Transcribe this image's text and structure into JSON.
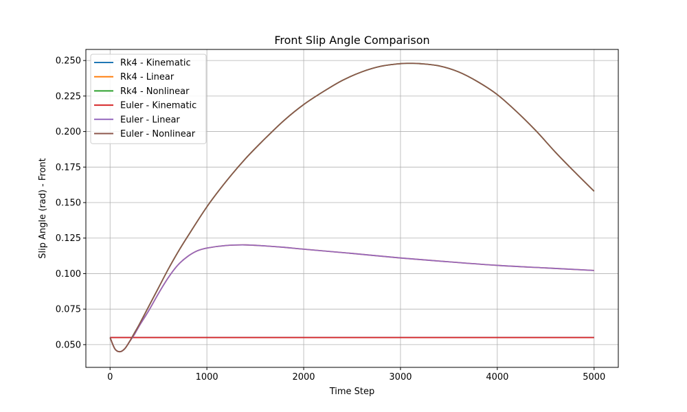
{
  "chart_data": {
    "type": "line",
    "title": "Front Slip Angle Comparison",
    "xlabel": "Time Step",
    "ylabel": "Slip Angle (rad) - Front",
    "xlim": [
      -250,
      5250
    ],
    "ylim": [
      0.034,
      0.2578
    ],
    "x_ticks": [
      0,
      1000,
      2000,
      3000,
      4000,
      5000
    ],
    "y_ticks": [
      0.05,
      0.075,
      0.1,
      0.125,
      0.15,
      0.175,
      0.2,
      0.225,
      0.25
    ],
    "y_tick_labels": [
      "0.050",
      "0.075",
      "0.100",
      "0.125",
      "0.150",
      "0.175",
      "0.200",
      "0.225",
      "0.250"
    ],
    "grid": true,
    "legend_position": "top-left",
    "series": [
      {
        "name": "Rk4 - Kinematic",
        "color": "#1f77b4",
        "x": [
          0,
          500,
          1000,
          1500,
          2000,
          2500,
          3000,
          3500,
          4000,
          4500,
          5000
        ],
        "y": [
          0.055,
          0.055,
          0.055,
          0.055,
          0.055,
          0.055,
          0.055,
          0.055,
          0.055,
          0.055,
          0.055
        ]
      },
      {
        "name": "Rk4 - Linear",
        "color": "#ff7f0e",
        "x": [
          0,
          50,
          100,
          150,
          200,
          250,
          300,
          400,
          500,
          600,
          700,
          800,
          900,
          1000,
          1200,
          1400,
          1600,
          1800,
          2000,
          2500,
          3000,
          3500,
          4000,
          4500,
          5000
        ],
        "y": [
          0.055,
          0.047,
          0.045,
          0.047,
          0.052,
          0.057,
          0.063,
          0.074,
          0.086,
          0.097,
          0.106,
          0.112,
          0.116,
          0.118,
          0.1198,
          0.1202,
          0.1195,
          0.1185,
          0.1172,
          0.1142,
          0.111,
          0.1083,
          0.1058,
          0.104,
          0.1022
        ]
      },
      {
        "name": "Rk4 - Nonlinear",
        "color": "#2ca02c",
        "x": [
          0,
          50,
          100,
          150,
          200,
          250,
          300,
          400,
          500,
          600,
          700,
          800,
          1000,
          1200,
          1400,
          1600,
          1800,
          2000,
          2200,
          2400,
          2600,
          2800,
          3000,
          3100,
          3200,
          3400,
          3600,
          3800,
          4000,
          4200,
          4400,
          4600,
          4800,
          5000
        ],
        "y": [
          0.055,
          0.047,
          0.045,
          0.047,
          0.052,
          0.058,
          0.064,
          0.077,
          0.09,
          0.103,
          0.115,
          0.126,
          0.147,
          0.165,
          0.181,
          0.195,
          0.208,
          0.219,
          0.228,
          0.236,
          0.242,
          0.246,
          0.2478,
          0.248,
          0.2478,
          0.2462,
          0.242,
          0.235,
          0.226,
          0.214,
          0.2005,
          0.1855,
          0.1715,
          0.158
        ]
      },
      {
        "name": "Euler - Kinematic",
        "color": "#d62728",
        "x": [
          0,
          500,
          1000,
          1500,
          2000,
          2500,
          3000,
          3500,
          4000,
          4500,
          5000
        ],
        "y": [
          0.055,
          0.055,
          0.055,
          0.055,
          0.055,
          0.055,
          0.055,
          0.055,
          0.055,
          0.055,
          0.055
        ]
      },
      {
        "name": "Euler - Linear",
        "color": "#9467bd",
        "x": [
          0,
          50,
          100,
          150,
          200,
          250,
          300,
          400,
          500,
          600,
          700,
          800,
          900,
          1000,
          1200,
          1400,
          1600,
          1800,
          2000,
          2500,
          3000,
          3500,
          4000,
          4500,
          5000
        ],
        "y": [
          0.055,
          0.047,
          0.045,
          0.047,
          0.052,
          0.057,
          0.063,
          0.074,
          0.086,
          0.097,
          0.106,
          0.112,
          0.116,
          0.118,
          0.1198,
          0.1202,
          0.1195,
          0.1185,
          0.1172,
          0.1142,
          0.111,
          0.1083,
          0.1058,
          0.104,
          0.1022
        ]
      },
      {
        "name": "Euler - Nonlinear",
        "color": "#8c564b",
        "x": [
          0,
          50,
          100,
          150,
          200,
          250,
          300,
          400,
          500,
          600,
          700,
          800,
          1000,
          1200,
          1400,
          1600,
          1800,
          2000,
          2200,
          2400,
          2600,
          2800,
          3000,
          3100,
          3200,
          3400,
          3600,
          3800,
          4000,
          4200,
          4400,
          4600,
          4800,
          5000
        ],
        "y": [
          0.055,
          0.047,
          0.045,
          0.047,
          0.052,
          0.058,
          0.064,
          0.077,
          0.09,
          0.103,
          0.115,
          0.126,
          0.147,
          0.165,
          0.181,
          0.195,
          0.208,
          0.219,
          0.228,
          0.236,
          0.242,
          0.246,
          0.2478,
          0.248,
          0.2478,
          0.2462,
          0.242,
          0.235,
          0.226,
          0.214,
          0.2005,
          0.1855,
          0.1715,
          0.158
        ]
      }
    ]
  }
}
